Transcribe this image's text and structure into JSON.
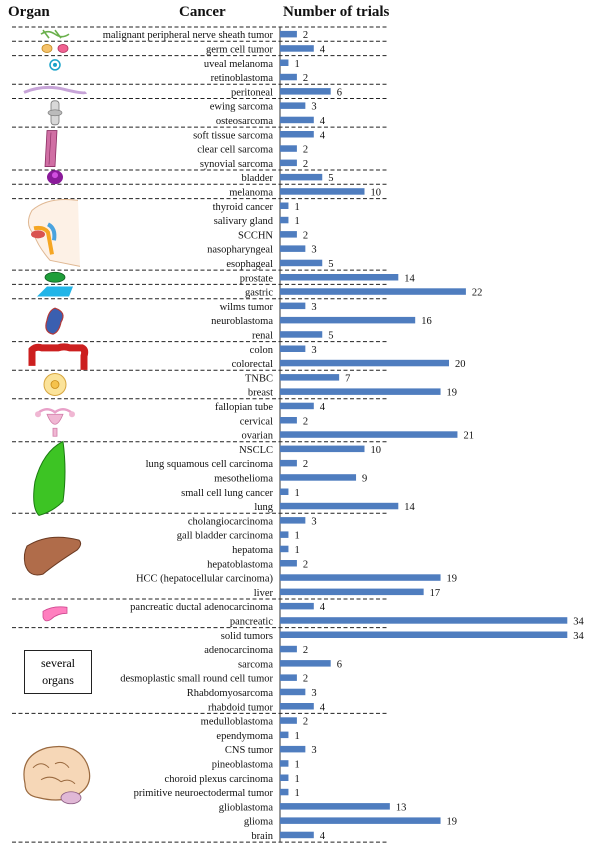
{
  "headers": {
    "organ": "Organ",
    "cancer": "Cancer",
    "trials": "Number of trials"
  },
  "colors": {
    "bar": "#4f7dbf",
    "divider": "#222222",
    "text": "#111111"
  },
  "organ_box_label": [
    "several",
    "organs"
  ],
  "chart_data": {
    "type": "bar",
    "orientation": "horizontal",
    "xlabel": "Number of trials",
    "categories": [
      "malignant peripheral nerve sheath tumor",
      "germ cell tumor",
      "uveal melanoma",
      "retinoblastoma",
      "peritoneal",
      "ewing sarcoma",
      "osteosarcoma",
      "soft tissue sarcoma",
      "clear cell sarcoma",
      "synovial sarcoma",
      "bladder",
      "melanoma",
      "thyroid cancer",
      "salivary gland",
      "SCCHN",
      "nasopharyngeal",
      "esophageal",
      "prostate",
      "gastric",
      "wilms tumor",
      "neuroblastoma",
      "renal",
      "colon",
      "colorectal",
      "TNBC",
      "breast",
      "fallopian tube",
      "cervical",
      "ovarian",
      "NSCLC",
      "lung squamous cell carcinoma",
      "mesothelioma",
      "small cell lung cancer",
      "lung",
      "cholangiocarcinoma",
      "gall bladder carcinoma",
      "hepatoma",
      "hepatoblastoma",
      "HCC (hepatocellular carcinoma)",
      "liver",
      "pancreatic ductal adenocarcinoma",
      "pancreatic",
      "solid tumors",
      "adenocarcinoma",
      "sarcoma",
      "desmoplastic small round cell tumor",
      "Rhabdomyosarcoma",
      "rhabdoid tumor",
      "medulloblastoma",
      "ependymoma",
      "CNS tumor",
      "pineoblastoma",
      "choroid plexus carcinoma",
      "primitive neuroectodermal tumor",
      "glioblastoma",
      "glioma",
      "brain"
    ],
    "values": [
      2,
      4,
      1,
      2,
      6,
      3,
      4,
      4,
      2,
      2,
      5,
      10,
      1,
      1,
      2,
      3,
      5,
      14,
      22,
      3,
      16,
      5,
      3,
      20,
      7,
      19,
      4,
      2,
      21,
      10,
      2,
      9,
      1,
      14,
      3,
      1,
      1,
      2,
      19,
      17,
      4,
      34,
      34,
      2,
      6,
      2,
      3,
      4,
      2,
      1,
      3,
      1,
      1,
      1,
      13,
      19,
      4
    ],
    "groups": [
      {
        "organ": "nerve",
        "size": 1
      },
      {
        "organ": "germ cells",
        "size": 1
      },
      {
        "organ": "eye",
        "size": 2
      },
      {
        "organ": "peritoneum",
        "size": 1
      },
      {
        "organ": "bone",
        "size": 2
      },
      {
        "organ": "soft tissue",
        "size": 3
      },
      {
        "organ": "bladder",
        "size": 1
      },
      {
        "organ": "skin",
        "size": 1
      },
      {
        "organ": "head and neck",
        "size": 5
      },
      {
        "organ": "prostate",
        "size": 1
      },
      {
        "organ": "stomach",
        "size": 1
      },
      {
        "organ": "kidney",
        "size": 3
      },
      {
        "organ": "colon",
        "size": 2
      },
      {
        "organ": "breast",
        "size": 2
      },
      {
        "organ": "female reproductive",
        "size": 3
      },
      {
        "organ": "lung",
        "size": 5
      },
      {
        "organ": "liver",
        "size": 6
      },
      {
        "organ": "pancreas",
        "size": 2
      },
      {
        "organ": "several organs",
        "size": 6
      },
      {
        "organ": "brain",
        "size": 9
      }
    ]
  }
}
